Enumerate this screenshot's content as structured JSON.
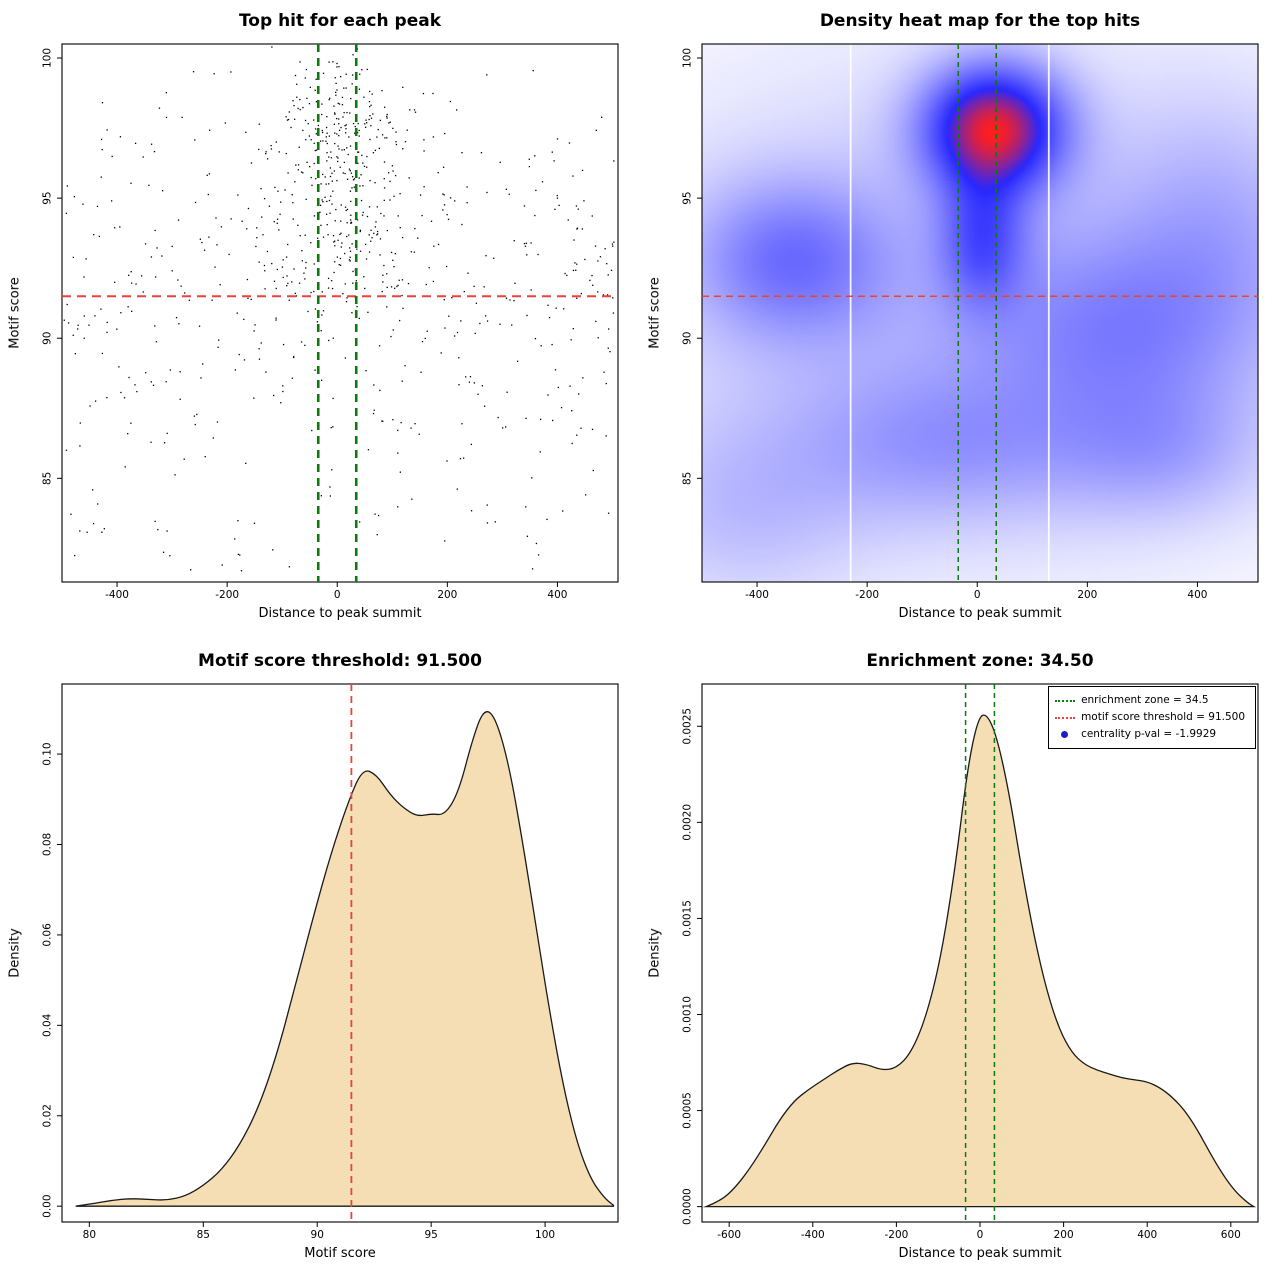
{
  "figure": {
    "background": "#ffffff"
  },
  "colors": {
    "points": "#000000",
    "threshold_red": "#e8443a",
    "zone_green": "#0c7a0c",
    "density_fill": "#f5deb3",
    "density_stroke": "#1a1a1a",
    "legend_blue": "#1c1ccc",
    "heat_blue": "#2828ff",
    "heat_red": "#ff1e1e"
  },
  "chart_data": [
    {
      "type": "scatter",
      "title": "Top hit for each peak",
      "xlabel": "Distance to peak summit",
      "ylabel": "Motif score",
      "xlim": [
        -500,
        510
      ],
      "ylim": [
        81.3,
        100.5
      ],
      "xticks": {
        "values": [
          -400,
          -200,
          0,
          200,
          400
        ],
        "labels": [
          "-400",
          "-200",
          "0",
          "200",
          "400"
        ]
      },
      "yticks": {
        "values": [
          85,
          90,
          95,
          100
        ],
        "labels": [
          "85",
          "90",
          "95",
          "100"
        ]
      },
      "motif_score_threshold": 91.5,
      "enrichment_zone": 34.5,
      "ref_lines": [
        {
          "axis": "y",
          "value": 91.5,
          "color": "#e8443a",
          "dash": [
            9,
            6
          ],
          "width": 2
        },
        {
          "axis": "x",
          "value": -34.5,
          "color": "#0c7a0c",
          "dash": [
            8,
            6
          ],
          "width": 2.6
        },
        {
          "axis": "x",
          "value": 34.5,
          "color": "#0c7a0c",
          "dash": [
            8,
            6
          ],
          "width": 2.6
        }
      ],
      "points_spec": {
        "seed": 813,
        "point_size": 1.3,
        "clusters": [
          {
            "n": 260,
            "x": {
              "type": "normal",
              "mean": 5,
              "sd": 58
            },
            "y": {
              "type": "normal",
              "mean": 97.2,
              "sd": 1.6
            }
          },
          {
            "n": 110,
            "x": {
              "type": "normal",
              "mean": 0,
              "sd": 75
            },
            "y": {
              "type": "normal",
              "mean": 93.2,
              "sd": 1.4
            }
          },
          {
            "n": 430,
            "x": {
              "type": "uniform",
              "min": -500,
              "max": 505
            },
            "y": {
              "type": "normal",
              "mean": 92.4,
              "sd": 3.2
            }
          },
          {
            "n": 72,
            "x": {
              "type": "uniform",
              "min": -495,
              "max": 500
            },
            "y": {
              "type": "uniform",
              "min": 82.2,
              "max": 88.5
            }
          },
          {
            "n": 10,
            "x": {
              "type": "uniform",
              "min": -430,
              "max": 430
            },
            "y": {
              "type": "uniform",
              "min": 81.6,
              "max": 83.6
            }
          }
        ]
      }
    },
    {
      "type": "heatmap",
      "title": "Density heat map for the top hits",
      "xlabel": "Distance to peak summit",
      "ylabel": "Motif score",
      "xlim": [
        -500,
        510
      ],
      "ylim": [
        81.3,
        100.5
      ],
      "xticks": {
        "values": [
          -400,
          -200,
          0,
          200,
          400
        ],
        "labels": [
          "-400",
          "-200",
          "0",
          "200",
          "400"
        ]
      },
      "yticks": {
        "values": [
          85,
          90,
          95,
          100
        ],
        "labels": [
          "85",
          "90",
          "95",
          "100"
        ]
      },
      "motif_score_threshold": 91.5,
      "enrichment_zone": 34.5,
      "ref_lines": [
        {
          "axis": "y",
          "value": 91.5,
          "color": "#e8443a",
          "dash": [
            7,
            5
          ],
          "width": 1.5
        },
        {
          "axis": "x",
          "value": -34.5,
          "color": "#0c7a0c",
          "dash": [
            5,
            4
          ],
          "width": 1.5
        },
        {
          "axis": "x",
          "value": 34.5,
          "color": "#0c7a0c",
          "dash": [
            5,
            4
          ],
          "width": 1.5
        }
      ],
      "white_lines": [
        -230,
        130
      ],
      "density_blobs": [
        {
          "x": 30,
          "y": 97.5,
          "sx": 85,
          "sy": 1.5,
          "w": 1.0
        },
        {
          "x": 10,
          "y": 93.6,
          "sx": 55,
          "sy": 1.7,
          "w": 0.42
        },
        {
          "x": -340,
          "y": 92.8,
          "sx": 120,
          "sy": 1.9,
          "w": 0.34
        },
        {
          "x": 250,
          "y": 90.2,
          "sx": 160,
          "sy": 2.3,
          "w": 0.22
        },
        {
          "x": -60,
          "y": 86.2,
          "sx": 190,
          "sy": 1.9,
          "w": 0.2
        },
        {
          "x": 330,
          "y": 86.0,
          "sx": 130,
          "sy": 1.7,
          "w": 0.17
        },
        {
          "x": -430,
          "y": 83.8,
          "sx": 150,
          "sy": 2.3,
          "w": 0.13
        },
        {
          "x": 440,
          "y": 93.6,
          "sx": 130,
          "sy": 3.2,
          "w": 0.16
        },
        {
          "x": 0,
          "y": 91.3,
          "sx": 430,
          "sy": 5.6,
          "w": 0.17
        }
      ],
      "colormap": {
        "low": "#ffffff",
        "mid": "#2828ff",
        "high": "#ff1e1e",
        "mid_point": 0.7,
        "gamma": 0.8
      }
    },
    {
      "type": "density",
      "title": "Motif score threshold: 91.500",
      "xlabel": "Motif score",
      "ylabel": "Density",
      "xlim": [
        78.8,
        103.2
      ],
      "ylim": [
        -0.0035,
        0.1155
      ],
      "xticks": {
        "values": [
          80,
          85,
          90,
          95,
          100
        ],
        "labels": [
          "80",
          "85",
          "90",
          "95",
          "100"
        ]
      },
      "yticks": {
        "values": [
          0,
          0.02,
          0.04,
          0.06,
          0.08,
          0.1
        ],
        "labels": [
          "0.00",
          "0.02",
          "0.04",
          "0.06",
          "0.08",
          "0.10"
        ]
      },
      "fill": "#f5deb3",
      "motif_score_threshold": 91.5,
      "ref_lines": [
        {
          "axis": "x",
          "value": 91.5,
          "color": "#e8443a",
          "dash": [
            7,
            5
          ],
          "width": 1.8
        }
      ],
      "curve": [
        [
          79.4,
          0.0
        ],
        [
          80.2,
          0.0006
        ],
        [
          81.0,
          0.0013
        ],
        [
          81.8,
          0.0017
        ],
        [
          82.6,
          0.0015
        ],
        [
          83.4,
          0.0013
        ],
        [
          84.2,
          0.0022
        ],
        [
          85.0,
          0.0045
        ],
        [
          85.8,
          0.008
        ],
        [
          86.6,
          0.0135
        ],
        [
          87.4,
          0.0215
        ],
        [
          88.2,
          0.033
        ],
        [
          89.0,
          0.048
        ],
        [
          89.8,
          0.0635
        ],
        [
          90.6,
          0.078
        ],
        [
          91.4,
          0.09
        ],
        [
          92.0,
          0.0968
        ],
        [
          92.6,
          0.0955
        ],
        [
          93.2,
          0.091
        ],
        [
          93.8,
          0.088
        ],
        [
          94.4,
          0.0862
        ],
        [
          95.0,
          0.0868
        ],
        [
          95.6,
          0.0865
        ],
        [
          96.2,
          0.0915
        ],
        [
          96.8,
          0.103
        ],
        [
          97.3,
          0.11
        ],
        [
          97.8,
          0.1085
        ],
        [
          98.4,
          0.098
        ],
        [
          99.0,
          0.081
        ],
        [
          99.6,
          0.062
        ],
        [
          100.2,
          0.043
        ],
        [
          100.8,
          0.0265
        ],
        [
          101.4,
          0.014
        ],
        [
          102.0,
          0.006
        ],
        [
          102.6,
          0.0018
        ],
        [
          103.0,
          0.0002
        ]
      ]
    },
    {
      "type": "density",
      "title": "Enrichment zone: 34.50",
      "xlabel": "Distance to peak summit",
      "ylabel": "Density",
      "xlim": [
        -665,
        665
      ],
      "ylim": [
        -8e-05,
        0.00272
      ],
      "xticks": {
        "values": [
          -600,
          -400,
          -200,
          0,
          200,
          400,
          600
        ],
        "labels": [
          "-600",
          "-400",
          "-200",
          "0",
          "200",
          "400",
          "600"
        ]
      },
      "yticks": {
        "values": [
          0,
          0.0005,
          0.001,
          0.0015,
          0.002,
          0.0025
        ],
        "labels": [
          "0.0000",
          "0.0005",
          "0.0010",
          "0.0015",
          "0.0020",
          "0.0025"
        ]
      },
      "fill": "#f5deb3",
      "enrichment_zone": 34.5,
      "ref_lines": [
        {
          "axis": "x",
          "value": -34.5,
          "color": "#0c7a0c",
          "dash": [
            5,
            4
          ],
          "width": 1.5
        },
        {
          "axis": "x",
          "value": 34.5,
          "color": "#0c7a0c",
          "dash": [
            5,
            4
          ],
          "width": 1.5
        }
      ],
      "curve": [
        [
          -655,
          0.0
        ],
        [
          -620,
          3e-05
        ],
        [
          -585,
          0.0001
        ],
        [
          -550,
          0.0002
        ],
        [
          -515,
          0.00032
        ],
        [
          -480,
          0.00045
        ],
        [
          -445,
          0.00055
        ],
        [
          -410,
          0.00061
        ],
        [
          -375,
          0.00066
        ],
        [
          -340,
          0.00071
        ],
        [
          -305,
          0.00075
        ],
        [
          -270,
          0.00074
        ],
        [
          -235,
          0.00071
        ],
        [
          -200,
          0.00072
        ],
        [
          -165,
          0.0008
        ],
        [
          -130,
          0.00098
        ],
        [
          -95,
          0.00128
        ],
        [
          -60,
          0.00175
        ],
        [
          -30,
          0.00228
        ],
        [
          -5,
          0.00254
        ],
        [
          15,
          0.00257
        ],
        [
          40,
          0.00245
        ],
        [
          70,
          0.00215
        ],
        [
          100,
          0.00175
        ],
        [
          130,
          0.0014
        ],
        [
          160,
          0.00112
        ],
        [
          190,
          0.00092
        ],
        [
          220,
          0.0008
        ],
        [
          250,
          0.00074
        ],
        [
          280,
          0.00071
        ],
        [
          310,
          0.00069
        ],
        [
          340,
          0.00067
        ],
        [
          370,
          0.00066
        ],
        [
          400,
          0.00065
        ],
        [
          430,
          0.00062
        ],
        [
          460,
          0.00057
        ],
        [
          490,
          0.0005
        ],
        [
          520,
          0.0004
        ],
        [
          550,
          0.00028
        ],
        [
          580,
          0.00017
        ],
        [
          610,
          8e-05
        ],
        [
          640,
          2e-05
        ],
        [
          655,
          0.0
        ]
      ],
      "legend": {
        "items": [
          {
            "label": "enrichment zone = 34.5",
            "marker": "dotted-line",
            "color": "#0c7a0c"
          },
          {
            "label": "motif score threshold = 91.500",
            "marker": "dotted-line",
            "color": "#e8443a"
          },
          {
            "label": "centrality p-val = -1.9929",
            "marker": "dot",
            "color": "#1c1ccc"
          }
        ]
      }
    }
  ]
}
